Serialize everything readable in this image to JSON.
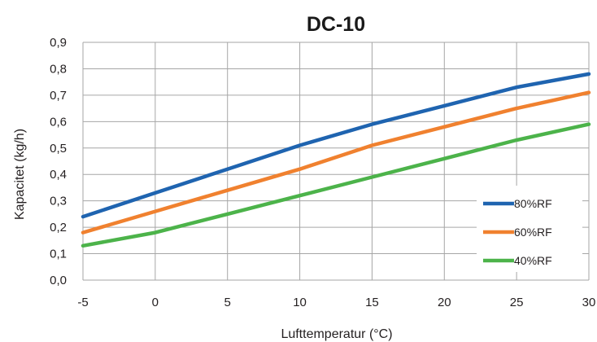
{
  "chart_data": {
    "type": "line",
    "title": "DC-10",
    "xlabel": "Lufttemperatur (°C)",
    "ylabel": "Kapacitet (kg/h)",
    "x": [
      -5,
      0,
      5,
      10,
      15,
      20,
      25,
      30
    ],
    "xticks": [
      "-5",
      "0",
      "5",
      "10",
      "15",
      "20",
      "25",
      "30"
    ],
    "yticks": [
      "0,0",
      "0,1",
      "0,2",
      "0,3",
      "0,4",
      "0,5",
      "0,6",
      "0,7",
      "0,8",
      "0,9"
    ],
    "xlim": [
      -5,
      30
    ],
    "ylim": [
      0,
      0.9
    ],
    "grid": true,
    "legend_position": "bottom-right",
    "series": [
      {
        "name": "80%RF",
        "color": "#1f64b0",
        "values": [
          0.24,
          0.33,
          0.42,
          0.51,
          0.59,
          0.66,
          0.73,
          0.78
        ]
      },
      {
        "name": "60%RF",
        "color": "#f0812f",
        "values": [
          0.18,
          0.26,
          0.34,
          0.42,
          0.51,
          0.58,
          0.65,
          0.71
        ]
      },
      {
        "name": "40%RF",
        "color": "#4cb34a",
        "values": [
          0.13,
          0.18,
          0.25,
          0.32,
          0.39,
          0.46,
          0.53,
          0.59
        ]
      }
    ]
  }
}
